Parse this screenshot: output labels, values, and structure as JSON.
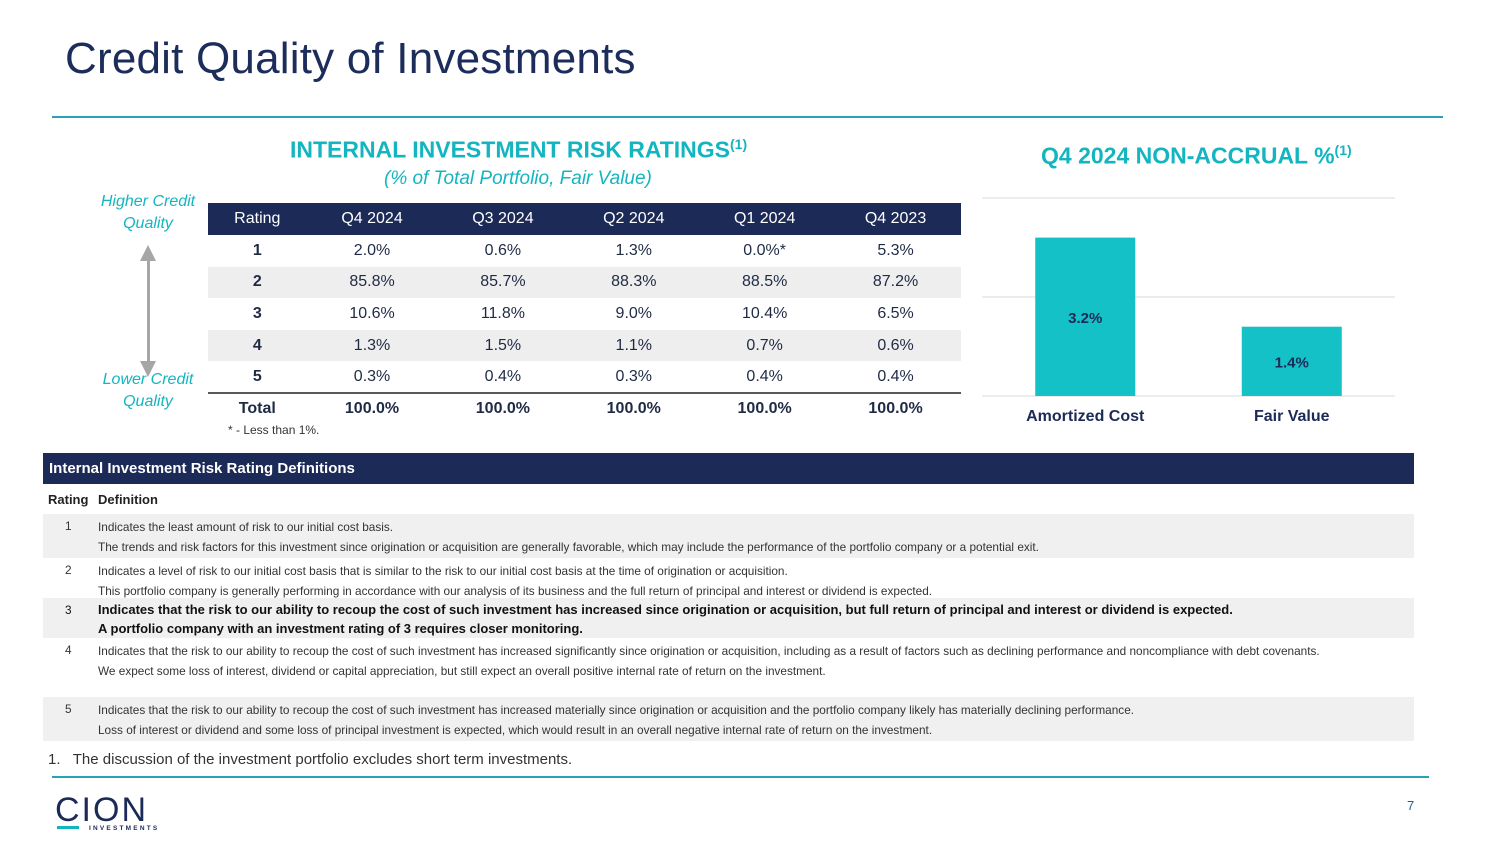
{
  "page": {
    "title": "Credit Quality of Investments",
    "page_number": "7"
  },
  "ratings_section": {
    "title": "INTERNAL INVESTMENT RISK RATINGS",
    "title_sup": "(1)",
    "subtitle": "(% of Total Portfolio, Fair Value)",
    "higher_label": "Higher Credit Quality",
    "lower_label": "Lower Credit Quality",
    "headers": [
      "Rating",
      "Q4 2024",
      "Q3 2024",
      "Q2 2024",
      "Q1 2024",
      "Q4 2023"
    ],
    "rows": [
      [
        "1",
        "2.0%",
        "0.6%",
        "1.3%",
        "0.0%*",
        "5.3%"
      ],
      [
        "2",
        "85.8%",
        "85.7%",
        "88.3%",
        "88.5%",
        "87.2%"
      ],
      [
        "3",
        "10.6%",
        "11.8%",
        "9.0%",
        "10.4%",
        "6.5%"
      ],
      [
        "4",
        "1.3%",
        "1.5%",
        "1.1%",
        "0.7%",
        "0.6%"
      ],
      [
        "5",
        "0.3%",
        "0.4%",
        "0.3%",
        "0.4%",
        "0.4%"
      ]
    ],
    "total_row": [
      "Total",
      "100.0%",
      "100.0%",
      "100.0%",
      "100.0%",
      "100.0%"
    ],
    "footnote": "* - Less than 1%."
  },
  "nonaccrual_section": {
    "title": "Q4 2024 NON-ACCRUAL %",
    "title_sup": "(1)"
  },
  "chart_data": {
    "type": "bar",
    "categories": [
      "Amortized Cost",
      "Fair Value"
    ],
    "values": [
      3.2,
      1.4
    ],
    "data_labels": [
      "3.2%",
      "1.4%"
    ],
    "ylim": [
      0,
      4
    ],
    "grid": true,
    "bar_color": "#13c1c6",
    "title": "Q4 2024 NON-ACCRUAL %(1)"
  },
  "definitions": {
    "header": "Internal Investment Risk Rating Definitions",
    "col_rating": "Rating",
    "col_definition": "Definition",
    "rows": [
      {
        "rating": "1",
        "line1": "Indicates the least amount of risk to our initial cost basis.",
        "line2": "The trends and risk factors for this investment since origination or acquisition are generally favorable, which may include the performance of the portfolio company or a potential exit."
      },
      {
        "rating": "2",
        "line1": "Indicates a level of risk to our initial cost basis that is similar to the risk to our initial cost basis at the time of origination or acquisition.",
        "line2": "This portfolio company is generally performing in accordance with our analysis of its business and the full return of principal and interest or dividend is expected."
      },
      {
        "rating": "3",
        "line1": "Indicates that the risk to our ability to recoup the cost of such investment has increased since origination or acquisition, but full return of principal and interest or dividend is expected.",
        "line2": "A portfolio company with an investment rating of 3 requires closer monitoring."
      },
      {
        "rating": "4",
        "line1": "Indicates that the risk to our ability to recoup the cost of such investment has increased significantly since origination or acquisition, including as a result of factors such as declining performance and noncompliance with debt covenants.",
        "line2": "We expect some loss of interest, dividend or capital appreciation, but still expect an overall positive internal rate of return on the investment."
      },
      {
        "rating": "5",
        "line1": "Indicates that the risk to our ability to recoup the cost of such investment has increased materially since origination or acquisition and the portfolio company likely has materially declining performance.",
        "line2": "Loss of interest or dividend and some loss of principal investment is expected, which would result in an overall negative internal rate of return on the investment."
      }
    ]
  },
  "footer": {
    "note_number": "1.",
    "note_text": "The discussion of the investment portfolio excludes short term investments.",
    "logo_word": "CION",
    "logo_sub": "INVESTMENTS"
  },
  "colors": {
    "navy": "#1c2a57",
    "teal": "#13b5c0",
    "rule": "#2aa1b5"
  }
}
